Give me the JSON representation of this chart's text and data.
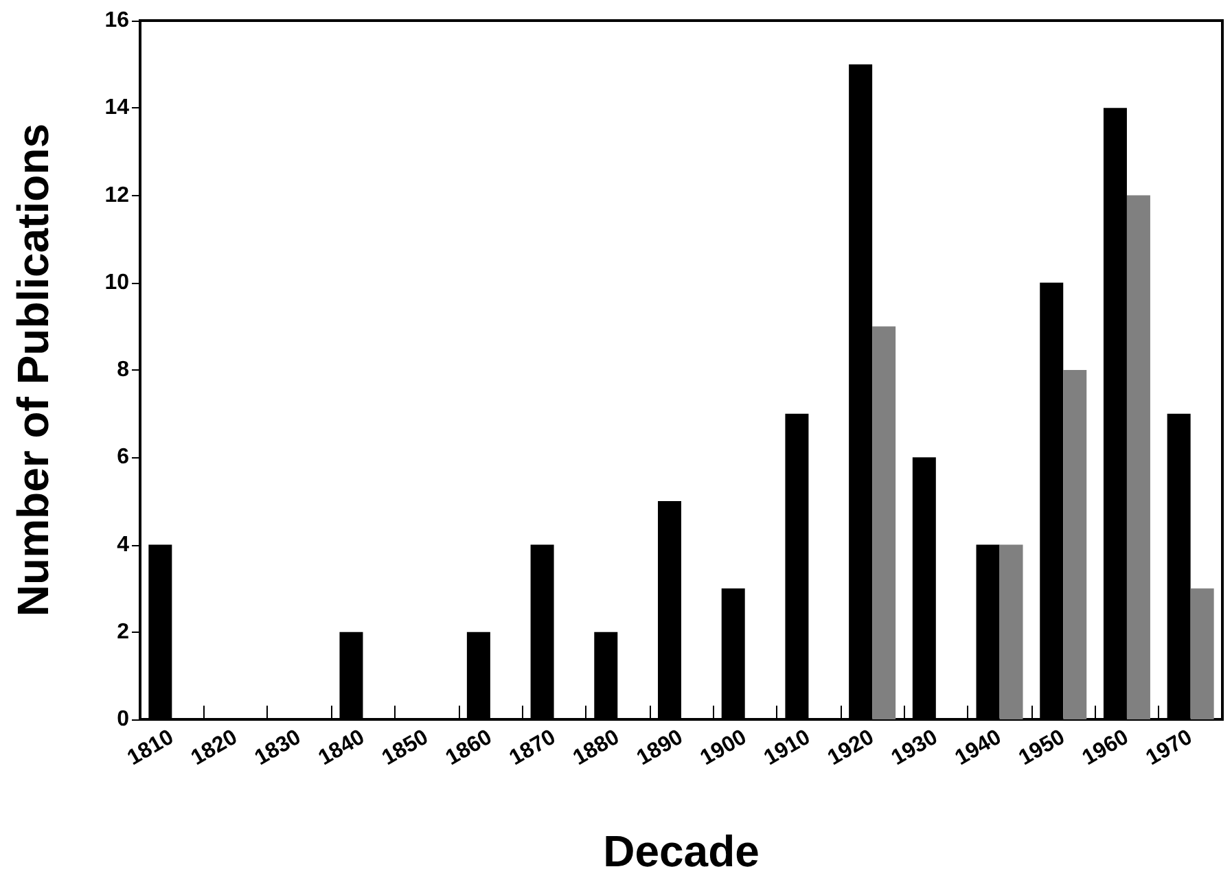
{
  "chart_data": {
    "type": "bar",
    "xlabel": "Decade",
    "ylabel": "Number of Publications",
    "categories": [
      "1810",
      "1820",
      "1830",
      "1840",
      "1850",
      "1860",
      "1870",
      "1880",
      "1890",
      "1900",
      "1910",
      "1920",
      "1930",
      "1940",
      "1950",
      "1960",
      "1970"
    ],
    "series": [
      {
        "color": "#000000",
        "values": [
          4,
          0,
          0,
          2,
          0,
          2,
          4,
          2,
          5,
          3,
          7,
          15,
          6,
          4,
          10,
          14,
          7
        ]
      },
      {
        "color": "#808080",
        "values": [
          null,
          null,
          null,
          null,
          null,
          null,
          null,
          null,
          null,
          null,
          null,
          9,
          null,
          4,
          8,
          12,
          3
        ]
      }
    ],
    "ylim": [
      0,
      16
    ],
    "yticks": [
      0,
      2,
      4,
      6,
      8,
      10,
      12,
      14,
      16
    ],
    "grid": false
  }
}
